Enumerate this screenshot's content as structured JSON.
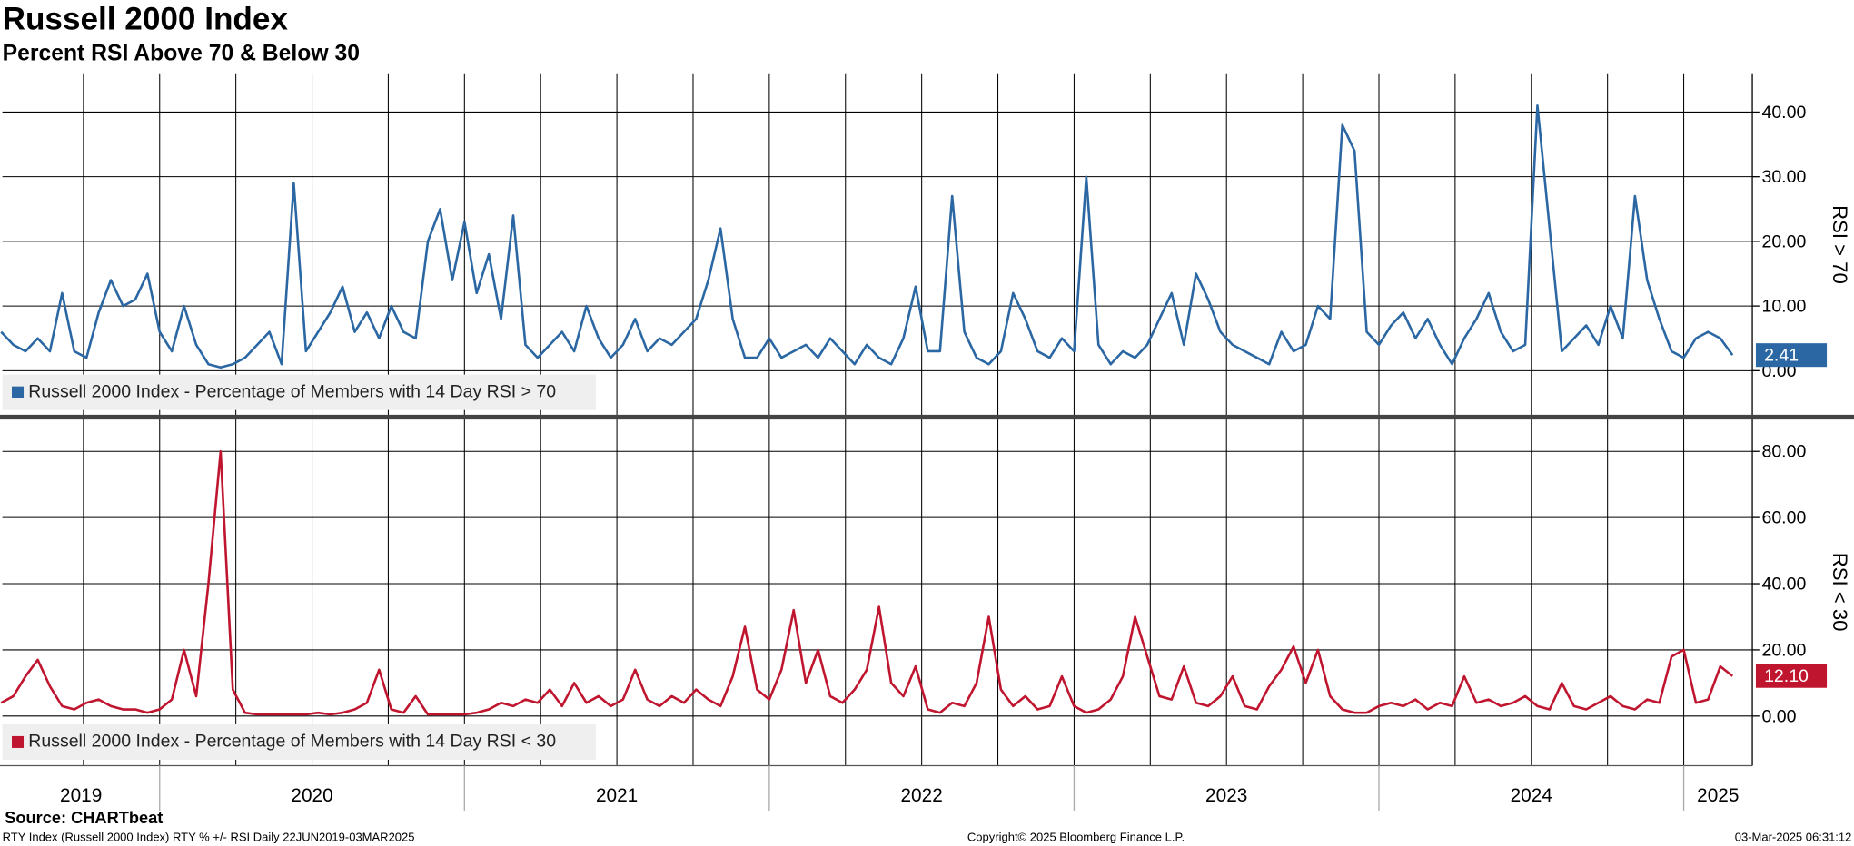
{
  "header": {
    "title": "Russell 2000 Index",
    "subtitle": "Percent RSI Above 70 & Below 30"
  },
  "chart_data": [
    {
      "type": "line",
      "y_label": "RSI > 70",
      "x": [
        2019.48,
        2019.52,
        2019.56,
        2019.6,
        2019.64,
        2019.68,
        2019.72,
        2019.76,
        2019.8,
        2019.84,
        2019.88,
        2019.92,
        2019.96,
        2020,
        2020.04,
        2020.08,
        2020.12,
        2020.16,
        2020.2,
        2020.24,
        2020.28,
        2020.32,
        2020.36,
        2020.4,
        2020.44,
        2020.48,
        2020.52,
        2020.56,
        2020.6,
        2020.64,
        2020.68,
        2020.72,
        2020.76,
        2020.8,
        2020.84,
        2020.88,
        2020.92,
        2020.96,
        2021,
        2021.04,
        2021.08,
        2021.12,
        2021.16,
        2021.2,
        2021.24,
        2021.28,
        2021.32,
        2021.36,
        2021.4,
        2021.44,
        2021.48,
        2021.52,
        2021.56,
        2021.6,
        2021.64,
        2021.68,
        2021.72,
        2021.76,
        2021.8,
        2021.84,
        2021.88,
        2021.92,
        2021.96,
        2022,
        2022.04,
        2022.08,
        2022.12,
        2022.16,
        2022.2,
        2022.24,
        2022.28,
        2022.32,
        2022.36,
        2022.4,
        2022.44,
        2022.48,
        2022.52,
        2022.56,
        2022.6,
        2022.64,
        2022.68,
        2022.72,
        2022.76,
        2022.8,
        2022.84,
        2022.88,
        2022.92,
        2022.96,
        2023,
        2023.04,
        2023.08,
        2023.12,
        2023.16,
        2023.2,
        2023.24,
        2023.28,
        2023.32,
        2023.36,
        2023.4,
        2023.44,
        2023.48,
        2023.52,
        2023.56,
        2023.6,
        2023.64,
        2023.68,
        2023.72,
        2023.76,
        2023.8,
        2023.84,
        2023.88,
        2023.92,
        2023.96,
        2024,
        2024.04,
        2024.08,
        2024.12,
        2024.16,
        2024.2,
        2024.24,
        2024.28,
        2024.32,
        2024.36,
        2024.4,
        2024.44,
        2024.48,
        2024.52,
        2024.56,
        2024.6,
        2024.64,
        2024.68,
        2024.72,
        2024.76,
        2024.8,
        2024.84,
        2024.88,
        2024.92,
        2024.96,
        2025,
        2025.04,
        2025.08,
        2025.12,
        2025.16
      ],
      "series": [
        {
          "name": "Russell 2000 Index - Percentage of Members with 14 Day RSI > 70",
          "color": "#2b67a3",
          "last_value_label": "2.41",
          "values": [
            6,
            4,
            3,
            5,
            3,
            12,
            3,
            2,
            9,
            14,
            10,
            11,
            15,
            6,
            3,
            10,
            4,
            1,
            0.5,
            1,
            2,
            4,
            6,
            1,
            29,
            3,
            6,
            9,
            13,
            6,
            9,
            5,
            10,
            6,
            5,
            20,
            25,
            14,
            23,
            12,
            18,
            8,
            24,
            4,
            2,
            4,
            6,
            3,
            10,
            5,
            2,
            4,
            8,
            3,
            5,
            4,
            6,
            8,
            14,
            22,
            8,
            2,
            2,
            5,
            2,
            3,
            4,
            2,
            5,
            3,
            1,
            4,
            2,
            1,
            5,
            13,
            3,
            3,
            27,
            6,
            2,
            1,
            3,
            12,
            8,
            3,
            2,
            5,
            3,
            30,
            4,
            1,
            3,
            2,
            4,
            8,
            12,
            4,
            15,
            11,
            6,
            4,
            3,
            2,
            1,
            6,
            3,
            4,
            10,
            8,
            38,
            34,
            6,
            4,
            7,
            9,
            5,
            8,
            4,
            1,
            5,
            8,
            12,
            6,
            3,
            4,
            41,
            22,
            3,
            5,
            7,
            4,
            10,
            5,
            27,
            14,
            8,
            3,
            2,
            5,
            6,
            5,
            2.41
          ]
        }
      ],
      "xlim": [
        2019.484,
        2025.225
      ],
      "xgrid": [
        2019.75,
        2020,
        2020.25,
        2020.5,
        2020.75,
        2021,
        2021.25,
        2021.5,
        2021.75,
        2022,
        2022.25,
        2022.5,
        2022.75,
        2023,
        2023.25,
        2023.5,
        2023.75,
        2024,
        2024.25,
        2024.5,
        2024.75,
        2025
      ],
      "ylim": [
        -7,
        46
      ],
      "yticks": [
        {
          "value": 0,
          "label": "0.00"
        },
        {
          "value": 10,
          "label": "10.00"
        },
        {
          "value": 20,
          "label": "20.00"
        },
        {
          "value": 30,
          "label": "30.00"
        },
        {
          "value": 40,
          "label": "40.00"
        }
      ],
      "grid": true
    },
    {
      "type": "line",
      "y_label": "RSI < 30",
      "x": [
        2019.48,
        2019.52,
        2019.56,
        2019.6,
        2019.64,
        2019.68,
        2019.72,
        2019.76,
        2019.8,
        2019.84,
        2019.88,
        2019.92,
        2019.96,
        2020,
        2020.04,
        2020.08,
        2020.12,
        2020.16,
        2020.2,
        2020.24,
        2020.28,
        2020.32,
        2020.36,
        2020.4,
        2020.44,
        2020.48,
        2020.52,
        2020.56,
        2020.6,
        2020.64,
        2020.68,
        2020.72,
        2020.76,
        2020.8,
        2020.84,
        2020.88,
        2020.92,
        2020.96,
        2021,
        2021.04,
        2021.08,
        2021.12,
        2021.16,
        2021.2,
        2021.24,
        2021.28,
        2021.32,
        2021.36,
        2021.4,
        2021.44,
        2021.48,
        2021.52,
        2021.56,
        2021.6,
        2021.64,
        2021.68,
        2021.72,
        2021.76,
        2021.8,
        2021.84,
        2021.88,
        2021.92,
        2021.96,
        2022,
        2022.04,
        2022.08,
        2022.12,
        2022.16,
        2022.2,
        2022.24,
        2022.28,
        2022.32,
        2022.36,
        2022.4,
        2022.44,
        2022.48,
        2022.52,
        2022.56,
        2022.6,
        2022.64,
        2022.68,
        2022.72,
        2022.76,
        2022.8,
        2022.84,
        2022.88,
        2022.92,
        2022.96,
        2023,
        2023.04,
        2023.08,
        2023.12,
        2023.16,
        2023.2,
        2023.24,
        2023.28,
        2023.32,
        2023.36,
        2023.4,
        2023.44,
        2023.48,
        2023.52,
        2023.56,
        2023.6,
        2023.64,
        2023.68,
        2023.72,
        2023.76,
        2023.8,
        2023.84,
        2023.88,
        2023.92,
        2023.96,
        2024,
        2024.04,
        2024.08,
        2024.12,
        2024.16,
        2024.2,
        2024.24,
        2024.28,
        2024.32,
        2024.36,
        2024.4,
        2024.44,
        2024.48,
        2024.52,
        2024.56,
        2024.6,
        2024.64,
        2024.68,
        2024.72,
        2024.76,
        2024.8,
        2024.84,
        2024.88,
        2024.92,
        2024.96,
        2025,
        2025.04,
        2025.08,
        2025.12,
        2025.16
      ],
      "series": [
        {
          "name": "Russell 2000 Index - Percentage of Members with 14 Day RSI < 30",
          "color": "#c0152f",
          "last_value_label": "12.10",
          "values": [
            4,
            6,
            12,
            17,
            9,
            3,
            2,
            4,
            5,
            3,
            2,
            2,
            1,
            2,
            5,
            20,
            6,
            40,
            80,
            8,
            1,
            0.5,
            0.5,
            0.5,
            0.5,
            0.5,
            1,
            0.5,
            1,
            2,
            4,
            14,
            2,
            1,
            6,
            0.5,
            0.5,
            0.5,
            0.5,
            1,
            2,
            4,
            3,
            5,
            4,
            8,
            3,
            10,
            4,
            6,
            3,
            5,
            14,
            5,
            3,
            6,
            4,
            8,
            5,
            3,
            12,
            27,
            8,
            5,
            14,
            32,
            10,
            20,
            6,
            4,
            8,
            14,
            33,
            10,
            6,
            15,
            2,
            1,
            4,
            3,
            10,
            30,
            8,
            3,
            6,
            2,
            3,
            12,
            3,
            1,
            2,
            5,
            12,
            30,
            18,
            6,
            5,
            15,
            4,
            3,
            6,
            12,
            3,
            2,
            9,
            14,
            21,
            10,
            20,
            6,
            2,
            1,
            1,
            3,
            4,
            3,
            5,
            2,
            4,
            3,
            12,
            4,
            5,
            3,
            4,
            6,
            3,
            2,
            10,
            3,
            2,
            4,
            6,
            3,
            2,
            5,
            4,
            18,
            20,
            4,
            5,
            15,
            12.1
          ]
        }
      ],
      "xlim": [
        2019.484,
        2025.225
      ],
      "xgrid": [
        2019.75,
        2020,
        2020.25,
        2020.5,
        2020.75,
        2021,
        2021.25,
        2021.5,
        2021.75,
        2022,
        2022.25,
        2022.5,
        2022.75,
        2023,
        2023.25,
        2023.5,
        2023.75,
        2024,
        2024.25,
        2024.5,
        2024.75,
        2025
      ],
      "year_labels": [
        "2019",
        "2020",
        "2021",
        "2022",
        "2023",
        "2024",
        "2025"
      ],
      "year_starts": [
        2020,
        2021,
        2022,
        2023,
        2024,
        2025
      ],
      "ylim": [
        -15,
        90
      ],
      "yticks": [
        {
          "value": 0,
          "label": "0.00"
        },
        {
          "value": 20,
          "label": "20.00"
        },
        {
          "value": 40,
          "label": "40.00"
        },
        {
          "value": 60,
          "label": "60.00"
        },
        {
          "value": 80,
          "label": "80.00"
        }
      ],
      "grid": true
    }
  ],
  "footer": {
    "source": "Source: CHARTbeat",
    "info": "RTY Index (Russell 2000 Index) RTY % +/- RSI  Daily 22JUN2019-03MAR2025",
    "copyright": "Copyright© 2025 Bloomberg Finance L.P.",
    "timestamp": "03-Mar-2025 06:31:12"
  }
}
